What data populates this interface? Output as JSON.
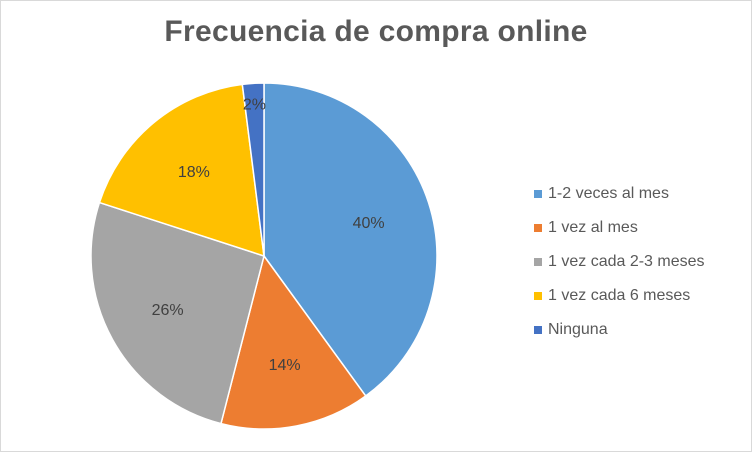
{
  "chart_data": {
    "type": "pie",
    "title": "Frecuencia de compra online",
    "categories": [
      "1-2 veces al mes",
      "1 vez al mes",
      "1 vez cada 2-3 meses",
      "1 vez cada 6 meses",
      "Ninguna"
    ],
    "values": [
      40,
      14,
      26,
      18,
      2
    ],
    "labels": [
      "40%",
      "14%",
      "26%",
      "18%",
      "2%"
    ],
    "colors": [
      "#5B9BD5",
      "#ED7D31",
      "#A5A5A5",
      "#FFC000",
      "#4472C4"
    ],
    "legend_position": "right",
    "start_angle": "12 o'clock",
    "direction": "clockwise"
  }
}
